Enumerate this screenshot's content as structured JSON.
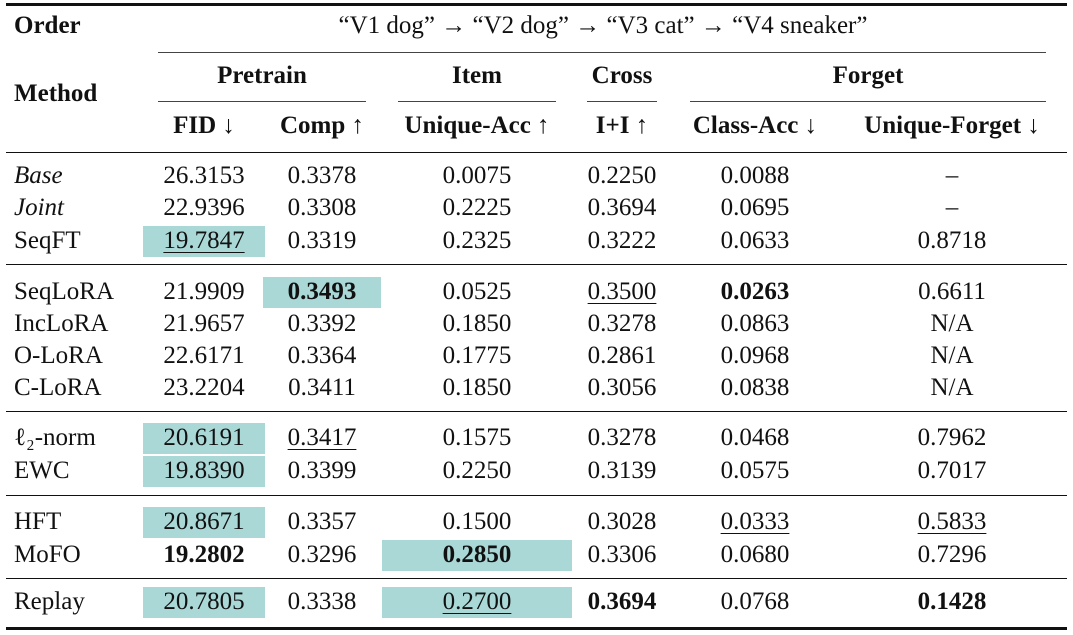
{
  "table": {
    "order_label": "Order",
    "sequence": "“V1 dog” → “V2 dog” → “V3 cat” → “V4 sneaker”",
    "method_label": "Method",
    "groups": [
      "Pretrain",
      "Item",
      "Cross",
      "Forget"
    ],
    "columns": [
      "FID ↓",
      "Comp ↑",
      "Unique-Acc ↑",
      "I+I ↑",
      "Class-Acc ↓",
      "Unique-Forget ↓"
    ],
    "highlight_color": "#a9d8d6",
    "rows": [
      {
        "method": "Base",
        "values": [
          "26.3153",
          "0.3378",
          "0.0075",
          "0.2250",
          "0.0088",
          "–"
        ],
        "italic": true
      },
      {
        "method": "Joint",
        "values": [
          "22.9396",
          "0.3308",
          "0.2225",
          "0.3694",
          "0.0695",
          "–"
        ],
        "italic": true
      },
      {
        "method": "SeqFT",
        "values": [
          "19.7847",
          "0.3319",
          "0.2325",
          "0.3222",
          "0.0633",
          "0.8718"
        ],
        "underline": [
          0
        ],
        "highlight": [
          0
        ]
      },
      {
        "method": "SeqLoRA",
        "values": [
          "21.9909",
          "0.3493",
          "0.0525",
          "0.3500",
          "0.0263",
          "0.6611"
        ],
        "bold": [
          1,
          4
        ],
        "underline": [
          3
        ],
        "highlight": [
          1
        ]
      },
      {
        "method": "IncLoRA",
        "values": [
          "21.9657",
          "0.3392",
          "0.1850",
          "0.3278",
          "0.0863",
          "N/A"
        ]
      },
      {
        "method": "O-LoRA",
        "values": [
          "22.6171",
          "0.3364",
          "0.1775",
          "0.2861",
          "0.0968",
          "N/A"
        ]
      },
      {
        "method": "C-LoRA",
        "values": [
          "23.2204",
          "0.3411",
          "0.1850",
          "0.3056",
          "0.0838",
          "N/A"
        ]
      },
      {
        "method": "ℓ₂-norm",
        "values": [
          "20.6191",
          "0.3417",
          "0.1575",
          "0.3278",
          "0.0468",
          "0.7962"
        ],
        "underline": [
          1
        ],
        "highlight": [
          0
        ]
      },
      {
        "method": "EWC",
        "values": [
          "19.8390",
          "0.3399",
          "0.2250",
          "0.3139",
          "0.0575",
          "0.7017"
        ],
        "highlight": [
          0
        ]
      },
      {
        "method": "HFT",
        "values": [
          "20.8671",
          "0.3357",
          "0.1500",
          "0.3028",
          "0.0333",
          "0.5833"
        ],
        "underline": [
          4,
          5
        ],
        "highlight": [
          0
        ]
      },
      {
        "method": "MoFO",
        "values": [
          "19.2802",
          "0.3296",
          "0.2850",
          "0.3306",
          "0.0680",
          "0.7296"
        ],
        "bold": [
          0,
          2
        ],
        "highlight": [
          2
        ]
      },
      {
        "method": "Replay",
        "values": [
          "20.7805",
          "0.3338",
          "0.2700",
          "0.3694",
          "0.0768",
          "0.1428"
        ],
        "bold": [
          3,
          5
        ],
        "underline": [
          2
        ],
        "highlight": [
          0,
          2
        ]
      }
    ]
  }
}
